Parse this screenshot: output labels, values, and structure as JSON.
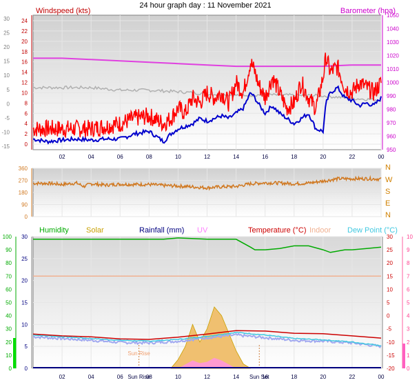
{
  "title": "24 hour graph day : 11 November 2021",
  "colors": {
    "windspeed_label": "#c00000",
    "barometer_label": "#cc00cc",
    "wind_gust": "#ff0000",
    "wind_avg": "#0000cc",
    "barometer": "#e040e0",
    "grey_trace": "#b0b0b0",
    "direction": "#d07820",
    "compass": "#d08000",
    "humidity": "#00aa00",
    "solar": "#c8a000",
    "rainfall": "#000080",
    "uv": "#ff80ff",
    "temperature": "#cc0000",
    "indoor": "#f0b090",
    "dewpoint": "#40c8e0",
    "apparent": "#a0a8f0",
    "solar_fill": "#f0c070",
    "uv_fill": "#ff9ad0",
    "sunrise_text": "#f0a070"
  },
  "chart_data": [
    {
      "type": "line",
      "name": "windspeed-barometer",
      "title": "",
      "left_axis_label": "Windspeed (kts)",
      "right_axis_label": "Barometer (hpa)",
      "left_ylim": [
        0,
        25
      ],
      "left_ticks": [
        "0",
        "2",
        "4",
        "6",
        "8",
        "10",
        "12",
        "14",
        "16",
        "18",
        "20",
        "22",
        "24"
      ],
      "far_left_ticks": [
        "-15",
        "-10",
        "-5",
        "0",
        "5",
        "10",
        "15",
        "20",
        "25",
        "30"
      ],
      "right_ylim": [
        950,
        1050
      ],
      "right_ticks": [
        "950",
        "960",
        "970",
        "980",
        "990",
        "1000",
        "1010",
        "1020",
        "1030",
        "1040",
        "1050"
      ],
      "x_ticks": [
        "02",
        "04",
        "06",
        "08",
        "10",
        "12",
        "14",
        "16",
        "18",
        "20",
        "22",
        "00"
      ],
      "x_tick_hours": [
        2,
        4,
        6,
        8,
        10,
        12,
        14,
        16,
        18,
        20,
        22,
        24
      ],
      "grid": true,
      "series": [
        {
          "key": "gust",
          "x": [
            0,
            1,
            2,
            3,
            4,
            5,
            6,
            7,
            8,
            9,
            9.5,
            10,
            10.5,
            11,
            11.5,
            12,
            12.5,
            13,
            13.5,
            14,
            14.5,
            15,
            15.3,
            15.5,
            16,
            16.5,
            17,
            17.5,
            18,
            18.5,
            19,
            19.5,
            20,
            20.2,
            20.5,
            21,
            21.5,
            22,
            22.5,
            23,
            23.5,
            24
          ],
          "values": [
            3,
            3,
            3,
            3,
            3,
            3.5,
            4,
            5,
            5.5,
            4,
            5,
            7,
            6,
            9,
            8,
            10,
            9,
            10,
            8,
            12,
            10,
            16,
            14,
            12,
            9,
            13,
            10,
            7,
            8,
            12,
            9,
            7,
            13,
            17,
            14,
            15,
            11,
            10,
            12,
            11,
            10,
            12
          ]
        },
        {
          "key": "avg",
          "x": [
            0,
            1,
            2,
            3,
            4,
            5,
            6,
            7,
            8,
            9,
            9.5,
            10,
            10.5,
            11,
            11.5,
            12,
            12.5,
            13,
            13.5,
            14,
            14.5,
            15,
            15.3,
            15.5,
            16,
            16.5,
            17,
            17.5,
            18,
            18.5,
            19,
            19.5,
            20,
            20.2,
            20.5,
            21,
            21.5,
            22,
            22.5,
            23,
            23.5,
            24
          ],
          "values": [
            1,
            0.5,
            0.8,
            1,
            0.8,
            1,
            1,
            2,
            2.5,
            0.5,
            2,
            3,
            3.5,
            4,
            5,
            4.5,
            5,
            5.5,
            5,
            6,
            7,
            10,
            9,
            8,
            6,
            7.5,
            6,
            5,
            4,
            5,
            6,
            3,
            2.5,
            8,
            10,
            11,
            9,
            8.5,
            7.5,
            8,
            7.5,
            9
          ]
        },
        {
          "key": "barometer",
          "x": [
            0,
            2,
            4,
            6,
            8,
            10,
            12,
            14,
            16,
            18,
            20,
            22,
            24
          ],
          "values": [
            1018,
            1018,
            1017,
            1016,
            1015,
            1014,
            1013,
            1012,
            1012,
            1012,
            1012,
            1013,
            1013
          ]
        },
        {
          "key": "grey",
          "x": [
            0,
            2,
            4,
            6,
            8,
            10,
            12,
            14,
            16,
            18,
            20,
            22,
            24
          ],
          "values": [
            11,
            11,
            11,
            10.5,
            10.5,
            10.2,
            9.8,
            9.5,
            9.6,
            9.5,
            9.4,
            8.9,
            8.6
          ]
        }
      ]
    },
    {
      "type": "line",
      "name": "wind-direction",
      "left_ticks": [
        "0",
        "90",
        "180",
        "270",
        "360"
      ],
      "left_ylim": [
        0,
        360
      ],
      "compass_labels": [
        "N",
        "W",
        "S",
        "E",
        "N"
      ],
      "grid": true,
      "series": [
        {
          "key": "direction",
          "x": [
            0,
            1,
            2,
            3,
            3.5,
            4,
            5,
            6,
            7,
            8,
            9,
            10,
            11,
            12,
            13,
            14,
            15,
            16,
            17,
            18,
            19,
            20,
            21,
            22,
            23,
            24
          ],
          "values": [
            248,
            248,
            240,
            250,
            225,
            245,
            235,
            242,
            240,
            240,
            232,
            228,
            222,
            215,
            222,
            225,
            245,
            252,
            250,
            245,
            250,
            265,
            282,
            282,
            283,
            280
          ]
        }
      ]
    },
    {
      "type": "line",
      "name": "temperature-humidity",
      "legend": [
        "Humidity",
        "Solar",
        "Rainfall (mm)",
        "UV",
        "Temperature (°C)",
        "Indoor",
        "Dew Point (°C)"
      ],
      "humidity_ticks": [
        "0",
        "10",
        "20",
        "30",
        "40",
        "50",
        "60",
        "70",
        "80",
        "90",
        "100"
      ],
      "left_ylim": [
        0,
        30
      ],
      "left_ticks": [
        "0",
        "5",
        "10",
        "15",
        "20",
        "25",
        "30"
      ],
      "right_ylim": [
        -20,
        10
      ],
      "right_ticks": [
        "-20",
        "-15",
        "-10",
        "-5",
        "0",
        "5",
        "10",
        "15",
        "20",
        "25",
        "30"
      ],
      "uv_ticks": [
        "0",
        "1",
        "2",
        "3",
        "4",
        "5",
        "6",
        "7",
        "8",
        "9",
        "10"
      ],
      "x_ticks": [
        "02",
        "04",
        "06",
        "08",
        "10",
        "12",
        "14",
        "16",
        "18",
        "20",
        "22",
        "00"
      ],
      "annotations": [
        "Sun Rise",
        "Sun Rise",
        "Sun Set"
      ],
      "grid": true,
      "series": [
        {
          "key": "humidity",
          "x": [
            0,
            2,
            4,
            6,
            8,
            9,
            10,
            12,
            13,
            14,
            15,
            15.3,
            16,
            17,
            18,
            19,
            20,
            20.5,
            21,
            21.5,
            22,
            23,
            24
          ],
          "values": [
            98,
            98,
            98,
            98,
            98,
            98,
            99,
            98,
            98,
            98,
            92,
            90,
            90,
            91,
            93,
            93,
            90,
            88,
            89,
            90,
            90,
            91,
            92
          ]
        },
        {
          "key": "temperature",
          "x": [
            0,
            2,
            4,
            6,
            8,
            10,
            12,
            14,
            16,
            18,
            20,
            22,
            24
          ],
          "values": [
            7.8,
            7.4,
            7.2,
            6.7,
            6.6,
            7.1,
            7.8,
            8.6,
            8.5,
            8.0,
            7.9,
            7.4,
            6.9
          ]
        },
        {
          "key": "indoor",
          "x": [
            0,
            2,
            4,
            6,
            8,
            10,
            12,
            14,
            16,
            18,
            20,
            22,
            24
          ],
          "values": [
            21,
            21,
            21,
            21,
            21,
            21,
            21,
            21,
            21,
            21,
            21,
            21,
            21
          ]
        },
        {
          "key": "dewpoint",
          "x": [
            0,
            2,
            4,
            6,
            8,
            10,
            12,
            14,
            16,
            18,
            20,
            22,
            24
          ],
          "values": [
            7.6,
            7.2,
            6.8,
            6.4,
            6.2,
            6.6,
            7.3,
            8.2,
            7.6,
            6.8,
            6.5,
            6.0,
            5.2
          ]
        },
        {
          "key": "apparent",
          "x": [
            0,
            2,
            4,
            6,
            8,
            10,
            12,
            14,
            16,
            18,
            20,
            22,
            24
          ],
          "values": [
            7.2,
            6.8,
            6.4,
            5.9,
            5.8,
            6.2,
            7.0,
            7.6,
            7.0,
            6.4,
            6.2,
            5.8,
            5.0
          ]
        },
        {
          "key": "solar",
          "x": [
            9.5,
            10,
            10.5,
            11,
            11.5,
            12,
            12.5,
            13,
            13.5,
            14,
            14.5,
            15
          ],
          "values": [
            0,
            2,
            5,
            10,
            6,
            9,
            14,
            12,
            8,
            4,
            1,
            0
          ]
        },
        {
          "key": "uv",
          "x": [
            10,
            10.5,
            11,
            11.5,
            12,
            12.5,
            13,
            13.5,
            14
          ],
          "values": [
            0,
            0.3,
            0.6,
            0.4,
            0.5,
            0.8,
            0.6,
            0.3,
            0
          ]
        }
      ]
    }
  ]
}
